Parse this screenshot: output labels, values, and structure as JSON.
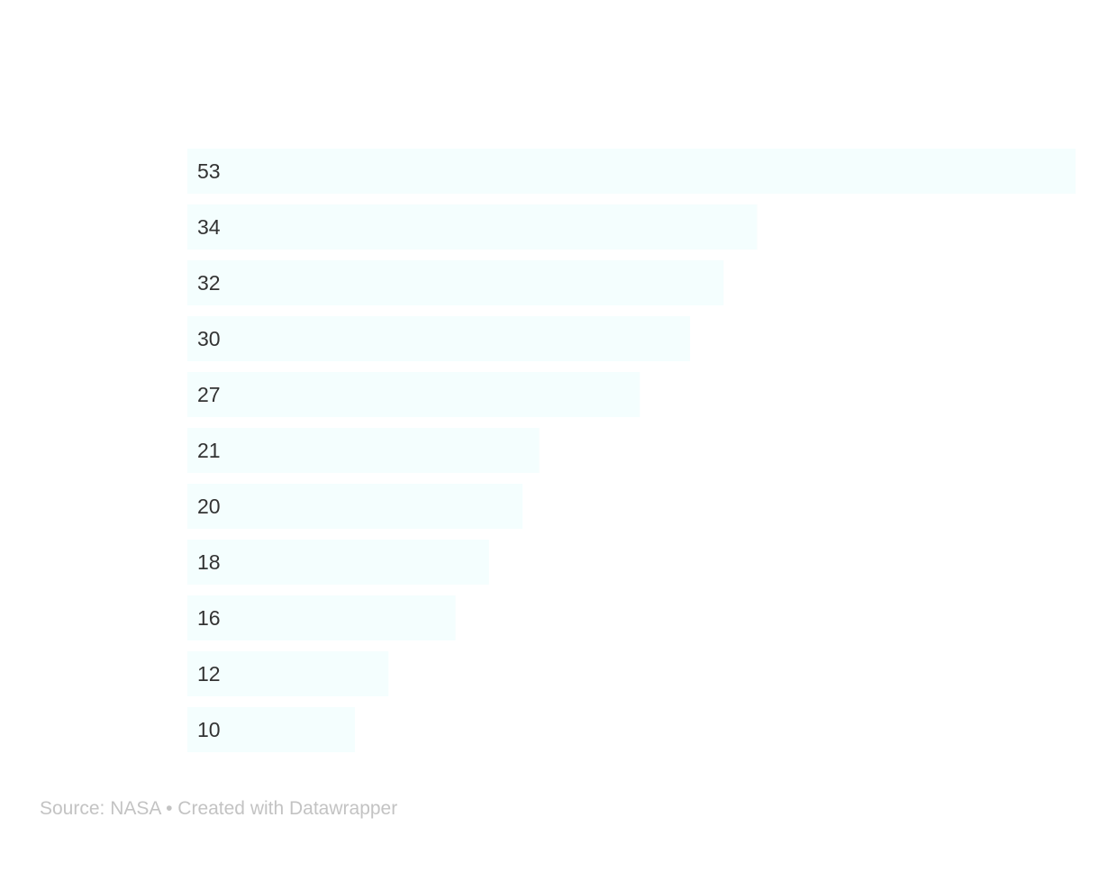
{
  "chart_data": {
    "type": "bar",
    "orientation": "horizontal",
    "values": [
      53,
      34,
      32,
      30,
      27,
      21,
      20,
      18,
      16,
      12,
      10
    ],
    "xlim": [
      0,
      53
    ],
    "grid": false,
    "bar_color": "#f4fefe",
    "label_color": "#333333"
  },
  "footer": {
    "source_label": "Source: ",
    "source_name": "NASA",
    "separator": " • ",
    "credit": "Created with Datawrapper"
  }
}
